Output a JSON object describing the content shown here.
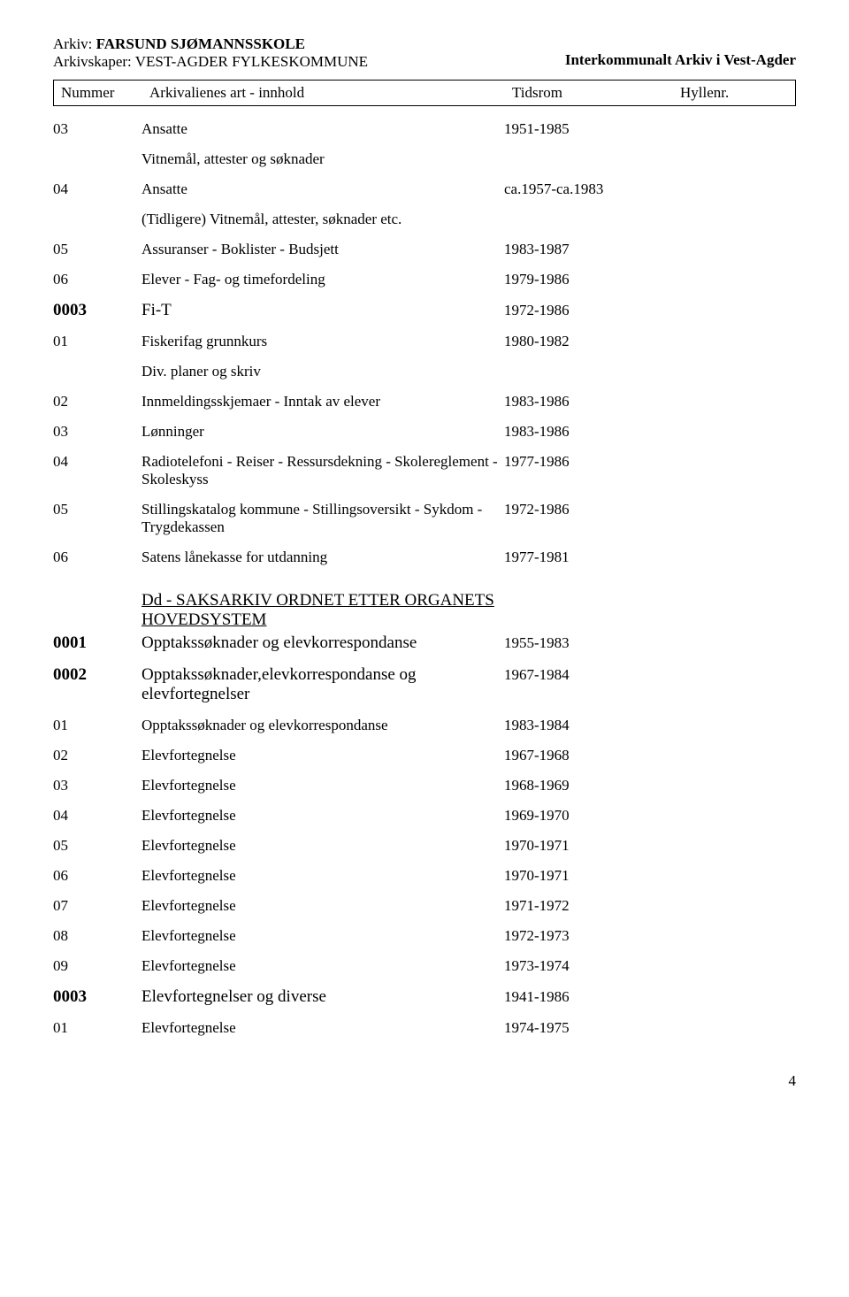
{
  "header": {
    "arkiv_label": "Arkiv: ",
    "arkiv_value": "FARSUND SJØMANNSSKOLE",
    "arkivskaper_label": "Arkivskaper: ",
    "arkivskaper_value": "VEST-AGDER FYLKESKOMMUNE",
    "right_title": "Interkommunalt Arkiv i Vest-Agder"
  },
  "columns": {
    "nummer": "Nummer",
    "art": "Arkivalienes art - innhold",
    "tidsrom": "Tidsrom",
    "hyllenr": "Hyllenr."
  },
  "rows": [
    {
      "type": "data",
      "num": "03",
      "desc": "Ansatte",
      "tids": "1951-1985"
    },
    {
      "type": "note",
      "desc": "Vitnemål, attester og søknader"
    },
    {
      "type": "data",
      "num": "04",
      "desc": "Ansatte",
      "tids": "ca.1957-ca.1983"
    },
    {
      "type": "note",
      "desc": "(Tidligere) Vitnemål, attester, søknader etc."
    },
    {
      "type": "data",
      "num": "05",
      "desc": "Assuranser - Boklister - Budsjett",
      "tids": "1983-1987"
    },
    {
      "type": "data",
      "num": "06",
      "desc": "Elever - Fag- og timefordeling",
      "tids": "1979-1986"
    },
    {
      "type": "data",
      "num": "0003",
      "desc": "Fi-T",
      "tids": "1972-1986",
      "bold": true,
      "big": true
    },
    {
      "type": "data",
      "num": "01",
      "desc": "Fiskerifag grunnkurs",
      "tids": "1980-1982"
    },
    {
      "type": "note",
      "desc": "Div. planer og skriv"
    },
    {
      "type": "data",
      "num": "02",
      "desc": "Innmeldingsskjemaer - Inntak av elever",
      "tids": "1983-1986"
    },
    {
      "type": "data",
      "num": "03",
      "desc": "Lønninger",
      "tids": "1983-1986"
    },
    {
      "type": "data",
      "num": "04",
      "desc": "Radiotelefoni - Reiser - Ressursdekning - Skolereglement - Skoleskyss",
      "tids": "1977-1986"
    },
    {
      "type": "data",
      "num": "05",
      "desc": "Stillingskatalog kommune - Stillingsoversikt - Sykdom - Trygdekassen",
      "tids": "1972-1986"
    },
    {
      "type": "data",
      "num": "06",
      "desc": "Satens lånekasse for utdanning",
      "tids": "1977-1981"
    },
    {
      "type": "section",
      "desc": "Dd - SAKSARKIV ORDNET ETTER ORGANETS HOVEDSYSTEM"
    },
    {
      "type": "data",
      "num": "0001",
      "desc": "Opptakssøknader og elevkorrespondanse",
      "tids": "1955-1983",
      "bold": true,
      "big": true
    },
    {
      "type": "data",
      "num": "0002",
      "desc": "Opptakssøknader,elevkorrespondanse og elevfortegnelser",
      "tids": "1967-1984",
      "bold": true,
      "big": true
    },
    {
      "type": "data",
      "num": "01",
      "desc": "Opptakssøknader og elevkorrespondanse",
      "tids": "1983-1984"
    },
    {
      "type": "data",
      "num": "02",
      "desc": "Elevfortegnelse",
      "tids": "1967-1968"
    },
    {
      "type": "data",
      "num": "03",
      "desc": "Elevfortegnelse",
      "tids": "1968-1969"
    },
    {
      "type": "data",
      "num": "04",
      "desc": "Elevfortegnelse",
      "tids": "1969-1970"
    },
    {
      "type": "data",
      "num": "05",
      "desc": "Elevfortegnelse",
      "tids": "1970-1971"
    },
    {
      "type": "data",
      "num": "06",
      "desc": "Elevfortegnelse",
      "tids": "1970-1971"
    },
    {
      "type": "data",
      "num": "07",
      "desc": "Elevfortegnelse",
      "tids": "1971-1972"
    },
    {
      "type": "data",
      "num": "08",
      "desc": "Elevfortegnelse",
      "tids": "1972-1973"
    },
    {
      "type": "data",
      "num": "09",
      "desc": "Elevfortegnelse",
      "tids": "1973-1974"
    },
    {
      "type": "data",
      "num": "0003",
      "desc": "Elevfortegnelser og diverse",
      "tids": "1941-1986",
      "bold": true,
      "big": true
    },
    {
      "type": "data",
      "num": "01",
      "desc": "Elevfortegnelse",
      "tids": "1974-1975"
    }
  ],
  "page_number": "4"
}
